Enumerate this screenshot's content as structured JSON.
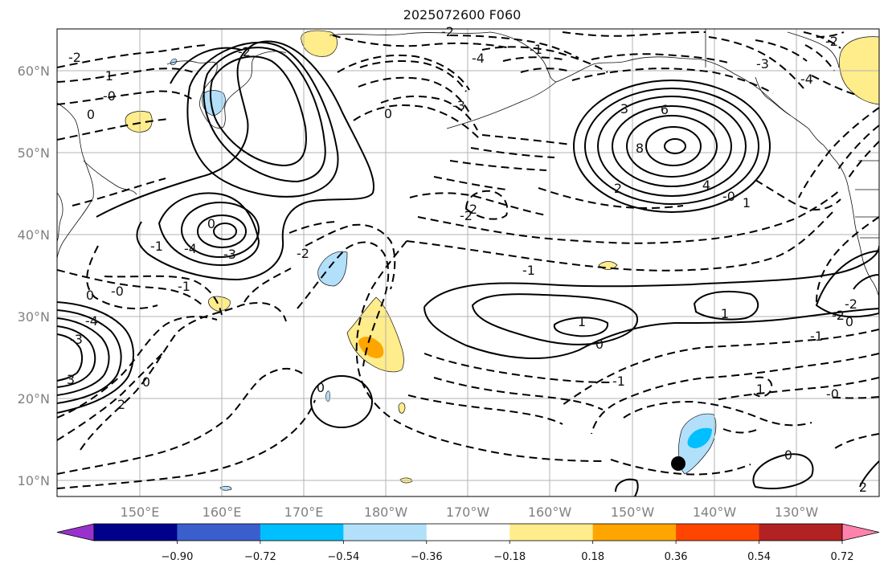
{
  "title": "2025072600 F060",
  "latitude_labels": [
    "60°N",
    "50°N",
    "40°N",
    "30°N",
    "20°N",
    "10°N"
  ],
  "longitude_labels": [
    "150°E",
    "160°E",
    "170°E",
    "180°W",
    "170°W",
    "160°W",
    "150°W",
    "140°W",
    "130°W"
  ],
  "colorbar": {
    "tick_labels": [
      "−0.90",
      "−0.72",
      "−0.54",
      "−0.36",
      "−0.18",
      "0.18",
      "0.36",
      "0.54",
      "0.72",
      "0.90"
    ],
    "colors": [
      "#9932cc",
      "#00008b",
      "#3a5fcd",
      "#00bfff",
      "#b2e0fa",
      "#ffffff",
      "#ffec8b",
      "#ffa500",
      "#ff4500",
      "#b22222",
      "#ff82ab"
    ]
  },
  "contour_labels": [
    "-2",
    "-1",
    "-0",
    "0",
    "-2",
    "-4",
    "-2",
    "-3",
    "0",
    "-1",
    "-2",
    "-4",
    "-3",
    "3",
    "6",
    "8",
    "4",
    "2",
    "-0",
    "1",
    "-4",
    "0",
    "-3",
    "3",
    "2",
    "0",
    "-1",
    "-1",
    "-0",
    "0",
    "-4",
    "-3",
    "-2",
    "2",
    "1",
    "0",
    "-1",
    "-1",
    "1",
    "-0",
    "-1",
    "-2",
    "-2",
    "0",
    "0",
    "2",
    "1",
    "0",
    "-2"
  ],
  "marker": "storm-center"
}
